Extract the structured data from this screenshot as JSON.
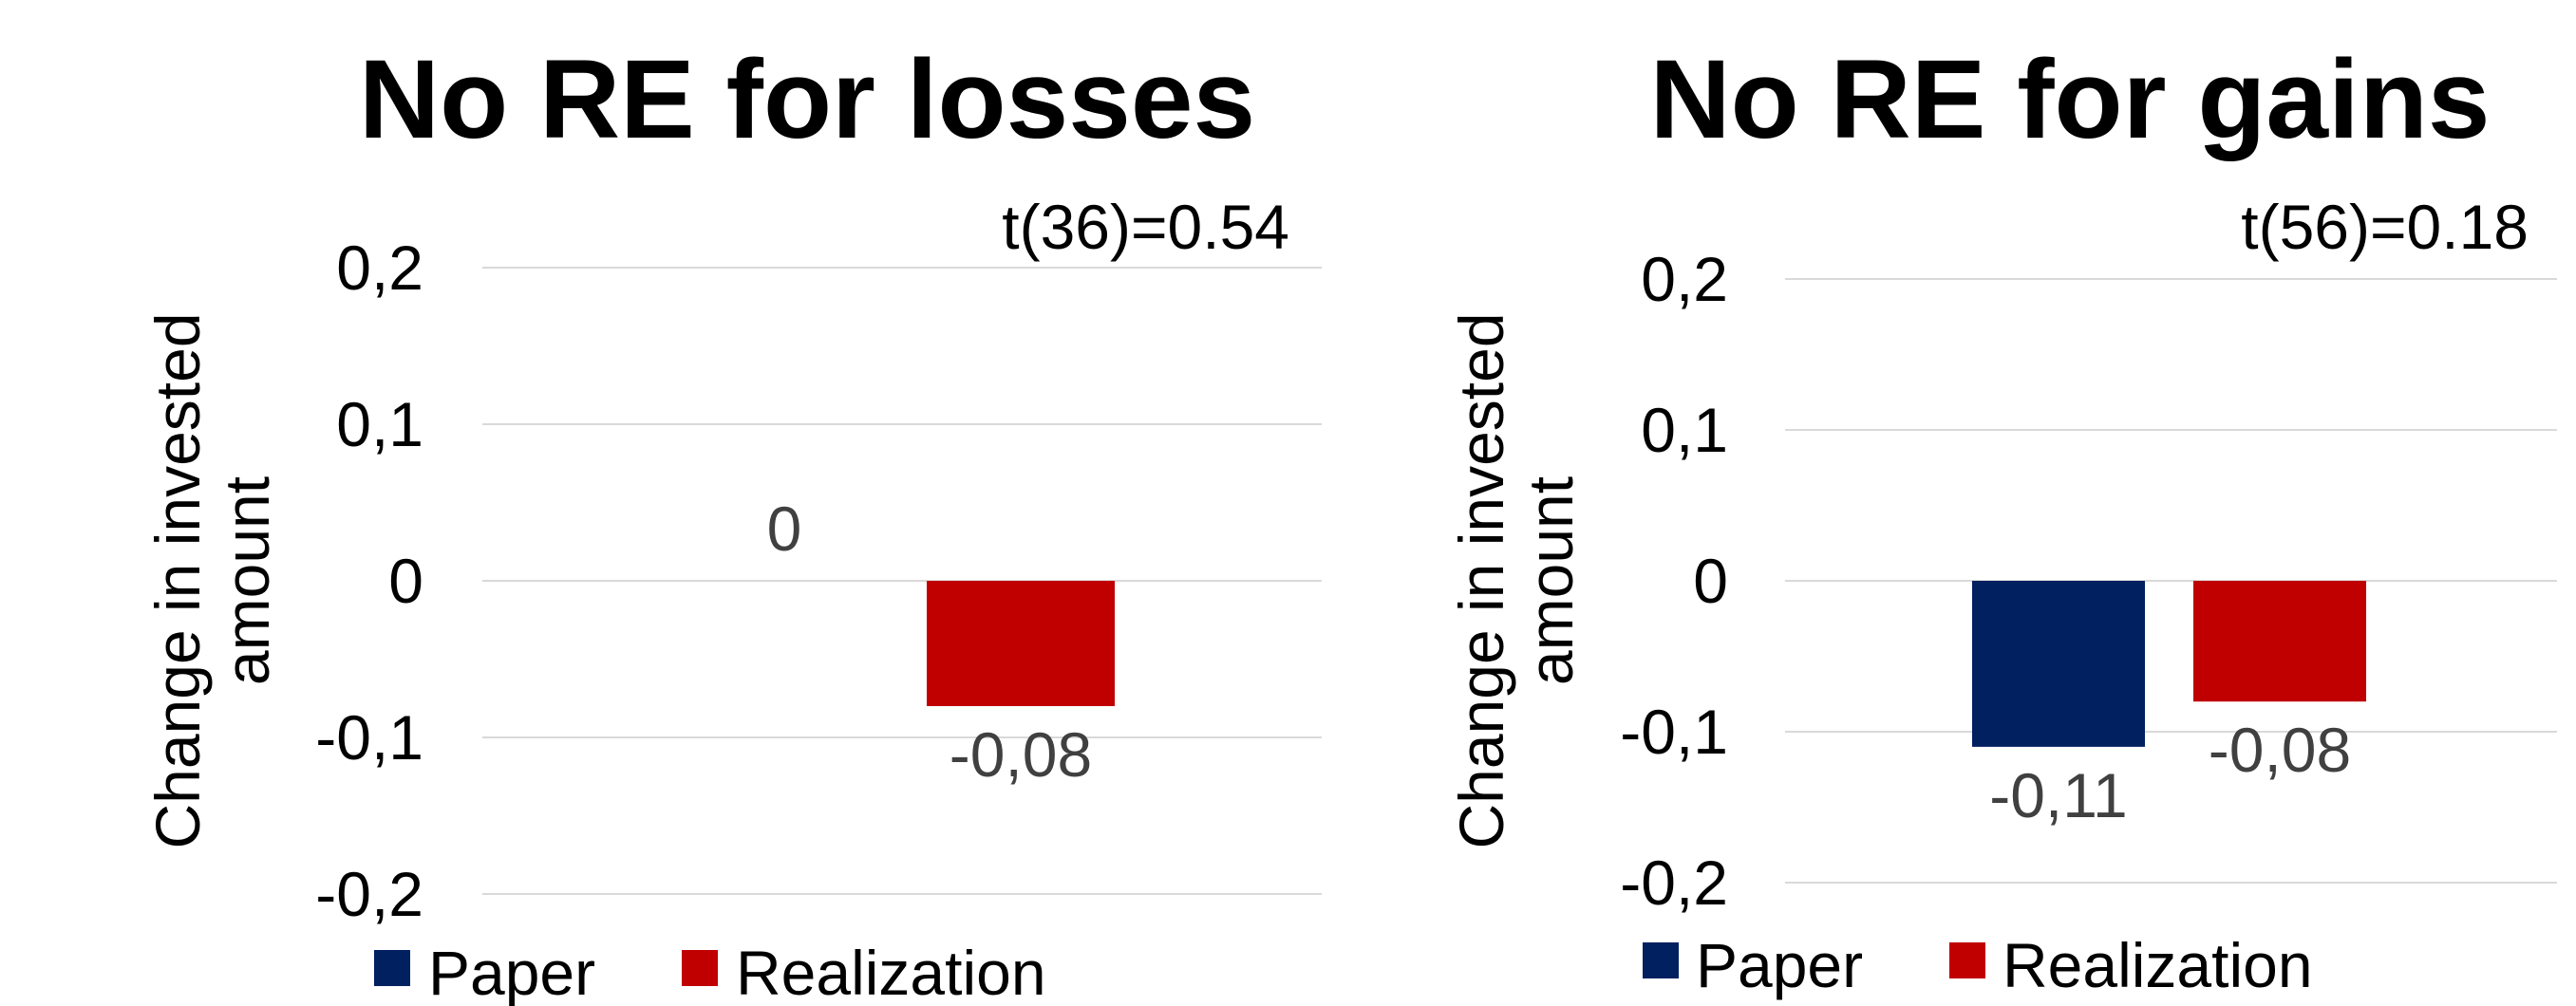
{
  "colors": {
    "paper": "#002060",
    "realization": "#c00000",
    "grid": "#d9d9d9",
    "data_label": "#404040"
  },
  "chart_data": [
    {
      "type": "bar",
      "title": "No RE for losses",
      "annotation": "t(36)=0.54",
      "ylabel": "Change in invested amount",
      "ylabel_lines": [
        "Change in invested",
        "amount"
      ],
      "ylim": [
        -0.2,
        0.2
      ],
      "yticks": [
        0.2,
        0.1,
        0,
        -0.1,
        -0.2
      ],
      "ytick_labels": [
        "0,2",
        "0,1",
        "0",
        "-0,1",
        "-0,2"
      ],
      "grid": true,
      "legend_position": "bottom",
      "series": [
        {
          "name": "Paper",
          "values": [
            0
          ],
          "labels": [
            "0"
          ]
        },
        {
          "name": "Realization",
          "values": [
            -0.08
          ],
          "labels": [
            "-0,08"
          ]
        }
      ]
    },
    {
      "type": "bar",
      "title": "No RE for gains",
      "annotation": "t(56)=0.18",
      "ylabel": "Change in invested amount",
      "ylabel_lines": [
        "Change in invested",
        "amount"
      ],
      "ylim": [
        -0.2,
        0.2
      ],
      "yticks": [
        0.2,
        0.1,
        0,
        -0.1,
        -0.2
      ],
      "ytick_labels": [
        "0,2",
        "0,1",
        "0",
        "-0,1",
        "-0,2"
      ],
      "grid": true,
      "legend_position": "bottom",
      "series": [
        {
          "name": "Paper",
          "values": [
            -0.11
          ],
          "labels": [
            "-0,11"
          ]
        },
        {
          "name": "Realization",
          "values": [
            -0.08
          ],
          "labels": [
            "-0,08"
          ]
        }
      ]
    }
  ]
}
